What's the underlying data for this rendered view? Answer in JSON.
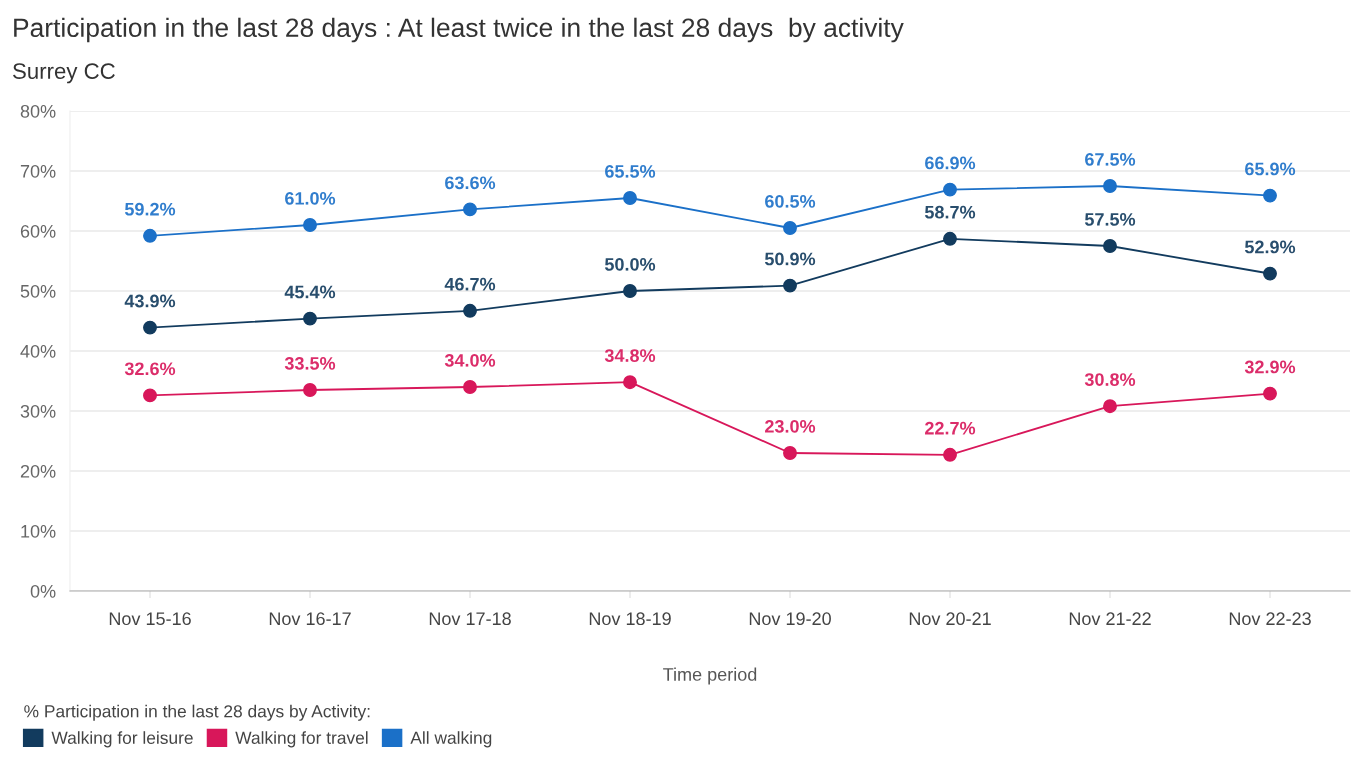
{
  "chart_data": {
    "type": "line",
    "title": "Participation in the last 28 days : At least twice in the last 28 days  by activity",
    "subtitle": "Surrey CC",
    "xlabel": "Time period",
    "legend_title": "% Participation in the last 28 days by Activity:",
    "categories": [
      "Nov 15-16",
      "Nov 16-17",
      "Nov 17-18",
      "Nov 18-19",
      "Nov 19-20",
      "Nov 20-21",
      "Nov 21-22",
      "Nov 22-23"
    ],
    "series": [
      {
        "name": "Walking for leisure",
        "color": "#123b5e",
        "values": [
          43.9,
          45.4,
          46.7,
          50.0,
          50.9,
          58.7,
          57.5,
          52.9
        ],
        "value_labels": [
          "43.9%",
          "45.4%",
          "46.7%",
          "50.0%",
          "50.9%",
          "58.7%",
          "57.5%",
          "52.9%"
        ]
      },
      {
        "name": "Walking for travel",
        "color": "#d8175a",
        "values": [
          32.6,
          33.5,
          34.0,
          34.8,
          23.0,
          22.7,
          30.8,
          32.9
        ],
        "value_labels": [
          "32.6%",
          "33.5%",
          "34.0%",
          "34.8%",
          "23.0%",
          "22.7%",
          "30.8%",
          "32.9%"
        ]
      },
      {
        "name": "All walking",
        "color": "#1b70c8",
        "values": [
          59.2,
          61.0,
          63.6,
          65.5,
          60.5,
          66.9,
          67.5,
          65.9
        ],
        "value_labels": [
          "59.2%",
          "61.0%",
          "63.6%",
          "65.5%",
          "60.5%",
          "66.9%",
          "67.5%",
          "65.9%"
        ]
      }
    ],
    "ylim": [
      0,
      80
    ],
    "yticks": [
      {
        "value": 0,
        "label": "0%"
      },
      {
        "value": 10,
        "label": "10%"
      },
      {
        "value": 20,
        "label": "20%"
      },
      {
        "value": 30,
        "label": "30%"
      },
      {
        "value": 40,
        "label": "40%"
      },
      {
        "value": 50,
        "label": "50%"
      },
      {
        "value": 60,
        "label": "60%"
      },
      {
        "value": 70,
        "label": "70%"
      },
      {
        "value": 80,
        "label": "80%"
      }
    ],
    "grid": "y",
    "legend": "bottom left",
    "marker": "circle",
    "line_style": "solid"
  }
}
